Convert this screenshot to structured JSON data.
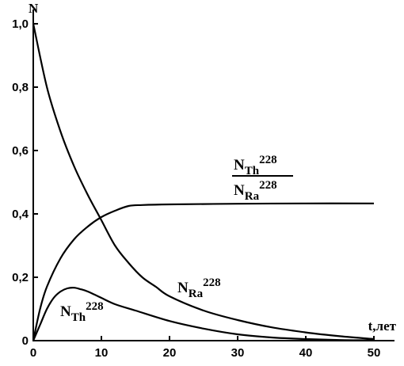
{
  "chart_data": {
    "type": "line",
    "ylabel": "N",
    "xlabel": "t,лет",
    "xlim": [
      0,
      50
    ],
    "ylim": [
      0,
      1.0
    ],
    "x_ticks": [
      0,
      10,
      20,
      30,
      40,
      50
    ],
    "x_tick_labels": [
      "0",
      "10",
      "20",
      "30",
      "40",
      "50"
    ],
    "y_ticks": [
      0,
      0.2,
      0.4,
      0.6,
      0.8,
      1.0
    ],
    "y_tick_labels": [
      "0",
      "0,2",
      "0,4",
      "0,6",
      "0,8",
      "1,0"
    ],
    "grid": false,
    "line_color": "#000000",
    "series": [
      {
        "id": "ra228",
        "label": {
          "base": "N",
          "sub": "Ra",
          "sup": "228"
        },
        "x": [
          0,
          2,
          4,
          6,
          8,
          10,
          12,
          14,
          16,
          18,
          20,
          25,
          30,
          35,
          40,
          45,
          50
        ],
        "y": [
          1.0,
          0.8,
          0.66,
          0.55,
          0.46,
          0.38,
          0.3,
          0.245,
          0.2,
          0.17,
          0.14,
          0.095,
          0.065,
          0.042,
          0.026,
          0.014,
          0.005
        ]
      },
      {
        "id": "ratio",
        "label": {
          "num": {
            "base": "N",
            "sub": "Th",
            "sup": "228"
          },
          "den": {
            "base": "N",
            "sub": "Ra",
            "sup": "228"
          }
        },
        "x": [
          0,
          1,
          2,
          4,
          6,
          8,
          10,
          12,
          14,
          16,
          20,
          30,
          40,
          50
        ],
        "y": [
          0,
          0.1,
          0.17,
          0.26,
          0.32,
          0.36,
          0.39,
          0.41,
          0.425,
          0.428,
          0.43,
          0.432,
          0.433,
          0.433
        ]
      },
      {
        "id": "th228",
        "label": {
          "base": "N",
          "sub": "Th",
          "sup": "228"
        },
        "x": [
          0,
          1,
          2,
          3,
          4,
          5,
          6,
          7,
          8,
          10,
          12,
          15,
          20,
          25,
          30,
          35,
          40,
          45,
          50
        ],
        "y": [
          0,
          0.05,
          0.1,
          0.135,
          0.155,
          0.165,
          0.167,
          0.162,
          0.155,
          0.135,
          0.115,
          0.095,
          0.062,
          0.038,
          0.02,
          0.01,
          0.005,
          0.002,
          0.001
        ]
      }
    ]
  }
}
